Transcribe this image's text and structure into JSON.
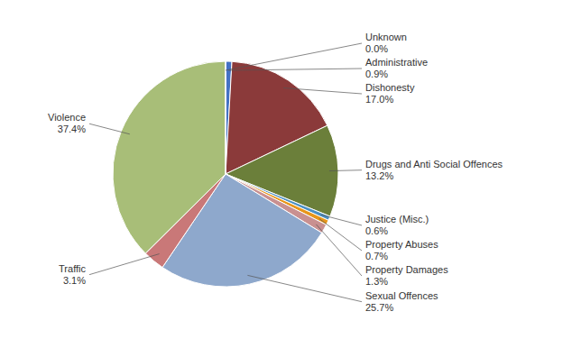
{
  "chart_data": {
    "type": "pie",
    "categories": [
      "Administrative",
      "Dishonesty",
      "Drugs and Anti Social Offences",
      "Justice (Misc.)",
      "Property Abuses",
      "Property Damages",
      "Sexual Offences",
      "Traffic",
      "Violence",
      "Unknown"
    ],
    "values": [
      0.9,
      17.0,
      13.2,
      0.6,
      0.7,
      1.3,
      25.7,
      3.1,
      37.4,
      0.0
    ],
    "value_labels": [
      "0.9%",
      "17.0%",
      "13.2%",
      "0.6%",
      "0.7%",
      "1.3%",
      "25.7%",
      "3.1%",
      "37.4%",
      "0.0%"
    ],
    "colors": [
      "#4472C4",
      "#8B3A3A",
      "#6B7F3A",
      "#4A90C4",
      "#E8961A",
      "#C99090",
      "#8EA8CC",
      "#C97878",
      "#A8BE78",
      "#4472C4"
    ]
  }
}
